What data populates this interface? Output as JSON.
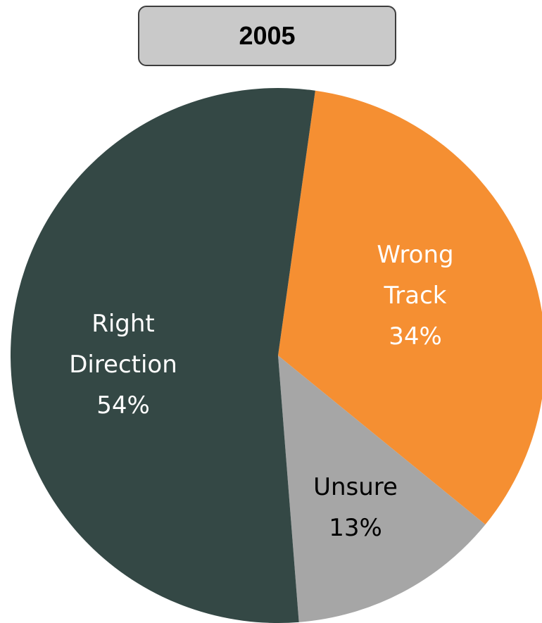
{
  "chart_data": {
    "type": "pie",
    "title": "2005",
    "categories": [
      "Wrong Track",
      "Unsure",
      "Right Direction"
    ],
    "values": [
      34,
      13,
      54
    ],
    "value_labels": [
      "34%",
      "13%",
      "54%"
    ],
    "colors": [
      "#f58f32",
      "#a6a6a6",
      "#344845"
    ]
  }
}
